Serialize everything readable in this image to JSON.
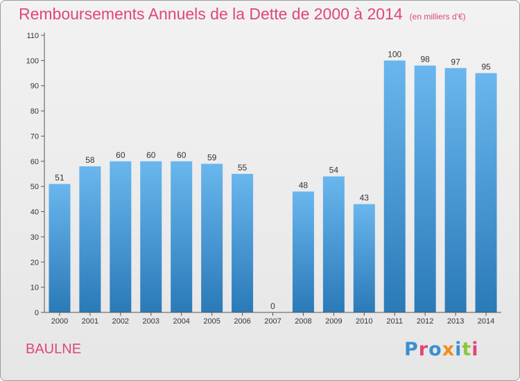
{
  "header": {
    "title": "Remboursements Annuels de la Dette de 2000 à 2014",
    "subtitle": "(en milliers d'€)"
  },
  "footer": {
    "commune": "BAULNE",
    "logo_text": "Proxiti"
  },
  "colors": {
    "title": "#e0457a",
    "bar_top": "#6ab6ee",
    "bar_bottom": "#2a7ab8",
    "logo_letters": [
      "#3a8fd0",
      "#e0457a",
      "#3a8fd0",
      "#f28c1a",
      "#3a8fd0",
      "#8cc63f",
      "#e0457a"
    ]
  },
  "chart_data": {
    "type": "bar",
    "title": "Remboursements Annuels de la Dette de 2000 à 2014",
    "subtitle": "(en milliers d'€)",
    "categories": [
      "2000",
      "2001",
      "2002",
      "2003",
      "2004",
      "2005",
      "2006",
      "2007",
      "2008",
      "2009",
      "2010",
      "2011",
      "2012",
      "2013",
      "2014"
    ],
    "values": [
      51,
      58,
      60,
      60,
      60,
      59,
      55,
      0,
      48,
      54,
      43,
      100,
      98,
      97,
      95
    ],
    "xlabel": "",
    "ylabel": "",
    "ylim": [
      0,
      110
    ],
    "yticks": [
      0,
      10,
      20,
      30,
      40,
      50,
      60,
      70,
      80,
      90,
      100,
      110
    ],
    "grid": false,
    "legend": "none"
  }
}
